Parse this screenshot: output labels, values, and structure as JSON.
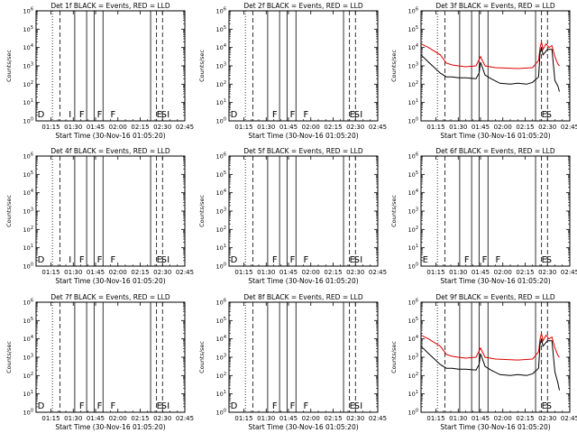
{
  "chart_data": [
    {
      "type": "line",
      "title": "Det 1f BLACK = Events, RED = LLD",
      "xlabel": "Start Time (30-Nov-16 01:05:20)",
      "ylabel": "Counts/sec",
      "yscale": "log",
      "ylim_exp": [
        0,
        6
      ],
      "x_ticks": [
        "01:15",
        "01:30",
        "01:45",
        "02:00",
        "02:15",
        "02:30",
        "02:45"
      ],
      "markers": [
        {
          "label": "D",
          "t": "01:06"
        },
        {
          "label": "I",
          "t": "01:27"
        },
        {
          "label": "F",
          "t": "01:34"
        },
        {
          "label": "F",
          "t": "01:46"
        },
        {
          "label": "F",
          "t": "01:55"
        },
        {
          "label": "E",
          "t": "02:26"
        },
        {
          "label": "S",
          "t": "02:29"
        },
        {
          "label": "I",
          "t": "02:33"
        }
      ],
      "series": []
    },
    {
      "type": "line",
      "title": "Det 2f BLACK = Events, RED = LLD",
      "xlabel": "Start Time (30-Nov-16 01:05:20)",
      "ylabel": "Counts/sec",
      "yscale": "log",
      "ylim_exp": [
        0,
        6
      ],
      "x_ticks": [
        "01:15",
        "01:30",
        "01:45",
        "02:00",
        "02:15",
        "02:30",
        "02:45"
      ],
      "markers": [
        {
          "label": "D",
          "t": "01:06"
        },
        {
          "label": "F",
          "t": "01:34"
        },
        {
          "label": "F",
          "t": "01:46"
        },
        {
          "label": "F",
          "t": "01:55"
        },
        {
          "label": "E",
          "t": "02:26"
        },
        {
          "label": "S",
          "t": "02:29"
        },
        {
          "label": "I",
          "t": "02:33"
        }
      ],
      "series": []
    },
    {
      "type": "line",
      "title": "Det 3f BLACK = Events, RED = LLD",
      "xlabel": "Start Time (30-Nov-16 01:05:20)",
      "ylabel": "Counts/sec",
      "yscale": "log",
      "ylim_exp": [
        0,
        6
      ],
      "x_ticks": [
        "01:15",
        "01:30",
        "01:45",
        "02:00",
        "02:15",
        "02:30",
        "02:45"
      ],
      "markers": [
        {
          "label": "E",
          "t": "02:26"
        },
        {
          "label": "S",
          "t": "02:29"
        }
      ],
      "series": [
        {
          "color": "#e00000",
          "x": [
            "01:05",
            "01:10",
            "01:18",
            "01:22",
            "01:26",
            "01:30",
            "01:35",
            "01:42",
            "01:45",
            "01:48",
            "01:55",
            "02:10",
            "02:20",
            "02:24",
            "02:25",
            "02:26",
            "02:27",
            "02:29",
            "02:31",
            "02:33",
            "02:35",
            "02:37",
            "02:38"
          ],
          "y": [
            4.2,
            4.0,
            3.6,
            3.15,
            3.05,
            3.0,
            2.95,
            3.0,
            3.5,
            3.0,
            2.9,
            2.85,
            2.9,
            3.3,
            4.0,
            4.3,
            3.9,
            4.2,
            4.0,
            4.1,
            3.5,
            3.1,
            3.0
          ]
        },
        {
          "color": "#000000",
          "x": [
            "01:05",
            "01:10",
            "01:18",
            "01:22",
            "01:26",
            "01:30",
            "01:35",
            "01:42",
            "01:44",
            "01:45",
            "01:48",
            "01:52",
            "01:58",
            "02:05",
            "02:10",
            "02:16",
            "02:20",
            "02:24",
            "02:25",
            "02:26",
            "02:27",
            "02:29",
            "02:30",
            "02:31",
            "02:33",
            "02:35",
            "02:37",
            "02:38"
          ],
          "y": [
            3.6,
            3.2,
            2.6,
            2.4,
            2.4,
            2.35,
            2.35,
            2.3,
            2.6,
            3.2,
            2.5,
            2.3,
            2.05,
            2.0,
            2.05,
            2.0,
            2.1,
            2.4,
            3.7,
            4.0,
            3.6,
            3.8,
            3.9,
            3.9,
            3.9,
            2.2,
            1.9,
            1.6
          ]
        }
      ]
    },
    {
      "type": "line",
      "title": "Det 4f BLACK = Events, RED = LLD",
      "xlabel": "Start Time (30-Nov-16 01:05:20)",
      "ylabel": "Counts/sec",
      "yscale": "log",
      "ylim_exp": [
        0,
        6
      ],
      "x_ticks": [
        "01:15",
        "01:30",
        "01:45",
        "02:00",
        "02:15",
        "02:30",
        "02:45"
      ],
      "markers": [
        {
          "label": "D",
          "t": "01:06"
        },
        {
          "label": "I",
          "t": "01:27"
        },
        {
          "label": "F",
          "t": "01:34"
        },
        {
          "label": "F",
          "t": "01:46"
        },
        {
          "label": "F",
          "t": "01:55"
        },
        {
          "label": "E",
          "t": "02:26"
        },
        {
          "label": "S",
          "t": "02:29"
        },
        {
          "label": "I",
          "t": "02:33"
        }
      ],
      "series": []
    },
    {
      "type": "line",
      "title": "Det 5f BLACK = Events, RED = LLD",
      "xlabel": "Start Time (30-Nov-16 01:05:20)",
      "ylabel": "Counts/sec",
      "yscale": "log",
      "ylim_exp": [
        0,
        6
      ],
      "x_ticks": [
        "01:15",
        "01:30",
        "01:45",
        "02:00",
        "02:15",
        "02:30",
        "02:45"
      ],
      "markers": [
        {
          "label": "D",
          "t": "01:06"
        },
        {
          "label": "F",
          "t": "01:34"
        },
        {
          "label": "F",
          "t": "01:46"
        },
        {
          "label": "F",
          "t": "01:55"
        },
        {
          "label": "E",
          "t": "02:26"
        },
        {
          "label": "S",
          "t": "02:29"
        },
        {
          "label": "I",
          "t": "02:33"
        }
      ],
      "series": []
    },
    {
      "type": "line",
      "title": "Det 6f BLACK = Events, RED = LLD",
      "xlabel": "Start Time (30-Nov-16 01:05:20)",
      "ylabel": "Counts/sec",
      "yscale": "log",
      "ylim_exp": [
        0,
        6
      ],
      "x_ticks": [
        "01:15",
        "01:30",
        "01:45",
        "02:00",
        "02:15",
        "02:30",
        "02:45"
      ],
      "markers": [
        {
          "label": "E",
          "t": "01:06"
        },
        {
          "label": "F",
          "t": "01:34"
        },
        {
          "label": "F",
          "t": "01:46"
        },
        {
          "label": "F",
          "t": "01:55"
        },
        {
          "label": "E",
          "t": "02:26"
        },
        {
          "label": "S",
          "t": "02:29"
        }
      ],
      "series": []
    },
    {
      "type": "line",
      "title": "Det 7f BLACK = Events, RED = LLD",
      "xlabel": "Start Time (30-Nov-16 01:05:20)",
      "ylabel": "Counts/sec",
      "yscale": "log",
      "ylim_exp": [
        0,
        6
      ],
      "x_ticks": [
        "01:15",
        "01:30",
        "01:45",
        "02:00",
        "02:15",
        "02:30",
        "02:45"
      ],
      "markers": [
        {
          "label": "D",
          "t": "01:06"
        },
        {
          "label": "F",
          "t": "01:34"
        },
        {
          "label": "F",
          "t": "01:46"
        },
        {
          "label": "F",
          "t": "01:55"
        },
        {
          "label": "E",
          "t": "02:26"
        },
        {
          "label": "S",
          "t": "02:29"
        },
        {
          "label": "I",
          "t": "02:33"
        }
      ],
      "series": []
    },
    {
      "type": "line",
      "title": "Det 8f BLACK = Events, RED = LLD",
      "xlabel": "Start Time (30-Nov-16 01:05:20)",
      "ylabel": "Counts/sec",
      "yscale": "log",
      "ylim_exp": [
        0,
        6
      ],
      "x_ticks": [
        "01:15",
        "01:30",
        "01:45",
        "02:00",
        "02:15",
        "02:30",
        "02:45"
      ],
      "markers": [
        {
          "label": "D",
          "t": "01:06"
        },
        {
          "label": "F",
          "t": "01:34"
        },
        {
          "label": "F",
          "t": "01:46"
        },
        {
          "label": "F",
          "t": "01:55"
        },
        {
          "label": "E",
          "t": "02:26"
        },
        {
          "label": "S",
          "t": "02:29"
        },
        {
          "label": "I",
          "t": "02:33"
        }
      ],
      "series": []
    },
    {
      "type": "line",
      "title": "Det 9f BLACK = Events, RED = LLD",
      "xlabel": "Start Time (30-Nov-16 01:05:20)",
      "ylabel": "Counts/sec",
      "yscale": "log",
      "ylim_exp": [
        0,
        6
      ],
      "x_ticks": [
        "01:15",
        "01:30",
        "01:45",
        "02:00",
        "02:15",
        "02:30",
        "02:45"
      ],
      "markers": [
        {
          "label": "E",
          "t": "02:26"
        },
        {
          "label": "S",
          "t": "02:29"
        }
      ],
      "series": [
        {
          "color": "#e00000",
          "x": [
            "01:05",
            "01:10",
            "01:18",
            "01:22",
            "01:26",
            "01:30",
            "01:35",
            "01:42",
            "01:45",
            "01:48",
            "01:55",
            "02:10",
            "02:20",
            "02:24",
            "02:25",
            "02:26",
            "02:27",
            "02:29",
            "02:31",
            "02:33",
            "02:35",
            "02:37",
            "02:38"
          ],
          "y": [
            4.2,
            4.0,
            3.6,
            3.15,
            3.05,
            3.0,
            2.95,
            3.0,
            3.5,
            3.0,
            2.9,
            2.85,
            2.9,
            3.3,
            4.0,
            4.3,
            3.9,
            4.2,
            4.0,
            4.1,
            3.5,
            3.1,
            3.0
          ]
        },
        {
          "color": "#000000",
          "x": [
            "01:05",
            "01:10",
            "01:18",
            "01:22",
            "01:26",
            "01:30",
            "01:35",
            "01:42",
            "01:44",
            "01:45",
            "01:48",
            "01:52",
            "01:58",
            "02:05",
            "02:10",
            "02:16",
            "02:20",
            "02:24",
            "02:25",
            "02:26",
            "02:27",
            "02:29",
            "02:30",
            "02:31",
            "02:33",
            "02:35",
            "02:37",
            "02:38"
          ],
          "y": [
            3.6,
            3.2,
            2.6,
            2.4,
            2.4,
            2.35,
            2.35,
            2.3,
            2.6,
            3.2,
            2.5,
            2.3,
            2.05,
            2.0,
            2.05,
            2.0,
            2.1,
            2.4,
            3.7,
            4.0,
            3.6,
            3.8,
            3.9,
            3.9,
            3.9,
            2.2,
            1.6,
            1.2
          ]
        }
      ]
    }
  ],
  "vlines": [
    {
      "t": "01:16",
      "style": "dotted"
    },
    {
      "t": "01:21",
      "style": "dashed"
    },
    {
      "t": "01:31",
      "style": "solid"
    },
    {
      "t": "01:39",
      "style": "solid"
    },
    {
      "t": "01:44",
      "style": "solid"
    },
    {
      "t": "01:50",
      "style": "solid"
    },
    {
      "t": "02:22",
      "style": "solid"
    },
    {
      "t": "02:26",
      "style": "dashed"
    },
    {
      "t": "02:30",
      "style": "dashed"
    }
  ],
  "x_range": [
    "01:05",
    "02:45"
  ]
}
